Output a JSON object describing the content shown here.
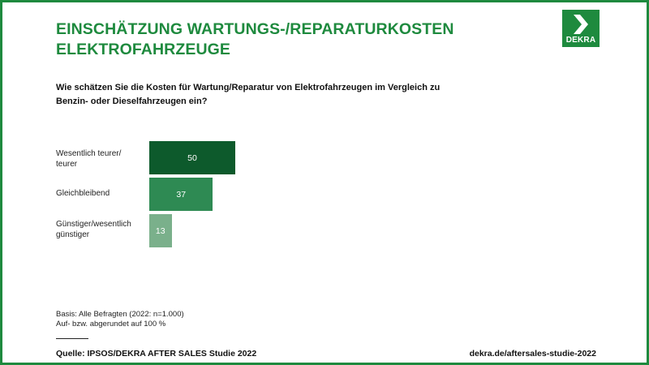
{
  "header": {
    "title_line1": "EINSCHÄTZUNG WARTUNGS-/REPARATURKOSTEN",
    "title_line2": "ELEKTROFAHRZEUGE",
    "logo_text": "DEKRA"
  },
  "question": {
    "line1": "Wie schätzen Sie die Kosten für Wartung/Reparatur von Elektrofahrzeugen im Vergleich zu",
    "line2": "Benzin- oder Dieselfahrzeugen ein?"
  },
  "chart_data": {
    "type": "bar",
    "orientation": "horizontal",
    "categories": [
      [
        "Wesentlich teurer/",
        "teurer"
      ],
      [
        "Gleichbleibend"
      ],
      [
        "Günstiger/wesentlich",
        "günstiger"
      ]
    ],
    "values": [
      50,
      37,
      13
    ],
    "labels": [
      "50",
      "37",
      "13"
    ],
    "colors": [
      "#0d5a2c",
      "#2e8a53",
      "#7ab08b"
    ],
    "unit": "%",
    "xlim": [
      0,
      100
    ],
    "grid": false,
    "legend": "none"
  },
  "footer": {
    "basis_line1": "Basis:  Alle Befragten (2022: n=1.000)",
    "basis_line2": "Auf- bzw. abgerundet auf 100 %",
    "source": "Quelle: IPSOS/DEKRA AFTER SALES Studie 2022",
    "url": "dekra.de/aftersales-studie-2022"
  },
  "colors": {
    "brand_green": "#1e8a3e",
    "text_dark": "#111111"
  }
}
